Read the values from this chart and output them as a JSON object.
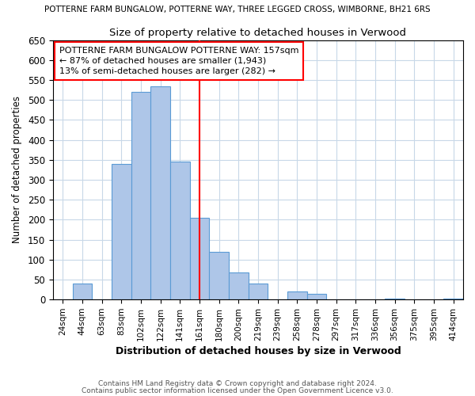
{
  "title_top": "POTTERNE FARM BUNGALOW, POTTERNE WAY, THREE LEGGED CROSS, WIMBORNE, BH21 6RS",
  "title": "Size of property relative to detached houses in Verwood",
  "xlabel": "Distribution of detached houses by size in Verwood",
  "ylabel": "Number of detached properties",
  "bin_labels": [
    "24sqm",
    "44sqm",
    "63sqm",
    "83sqm",
    "102sqm",
    "122sqm",
    "141sqm",
    "161sqm",
    "180sqm",
    "200sqm",
    "219sqm",
    "239sqm",
    "258sqm",
    "278sqm",
    "297sqm",
    "317sqm",
    "336sqm",
    "356sqm",
    "375sqm",
    "395sqm",
    "414sqm"
  ],
  "bar_values": [
    0,
    40,
    0,
    340,
    520,
    535,
    345,
    205,
    120,
    67,
    40,
    0,
    20,
    15,
    0,
    0,
    0,
    3,
    0,
    0,
    3
  ],
  "bar_color": "#aec6e8",
  "bar_edge_color": "#5b9bd5",
  "vline_x": 7,
  "vline_color": "red",
  "ylim": [
    0,
    650
  ],
  "yticks": [
    0,
    50,
    100,
    150,
    200,
    250,
    300,
    350,
    400,
    450,
    500,
    550,
    600,
    650
  ],
  "annotation_line1": "POTTERNE FARM BUNGALOW POTTERNE WAY: 157sqm",
  "annotation_line2": "← 87% of detached houses are smaller (1,943)",
  "annotation_line3": "13% of semi-detached houses are larger (282) →",
  "footer1": "Contains HM Land Registry data © Crown copyright and database right 2024.",
  "footer2": "Contains public sector information licensed under the Open Government Licence v3.0.",
  "background_color": "#ffffff",
  "grid_color": "#c8d8e8"
}
